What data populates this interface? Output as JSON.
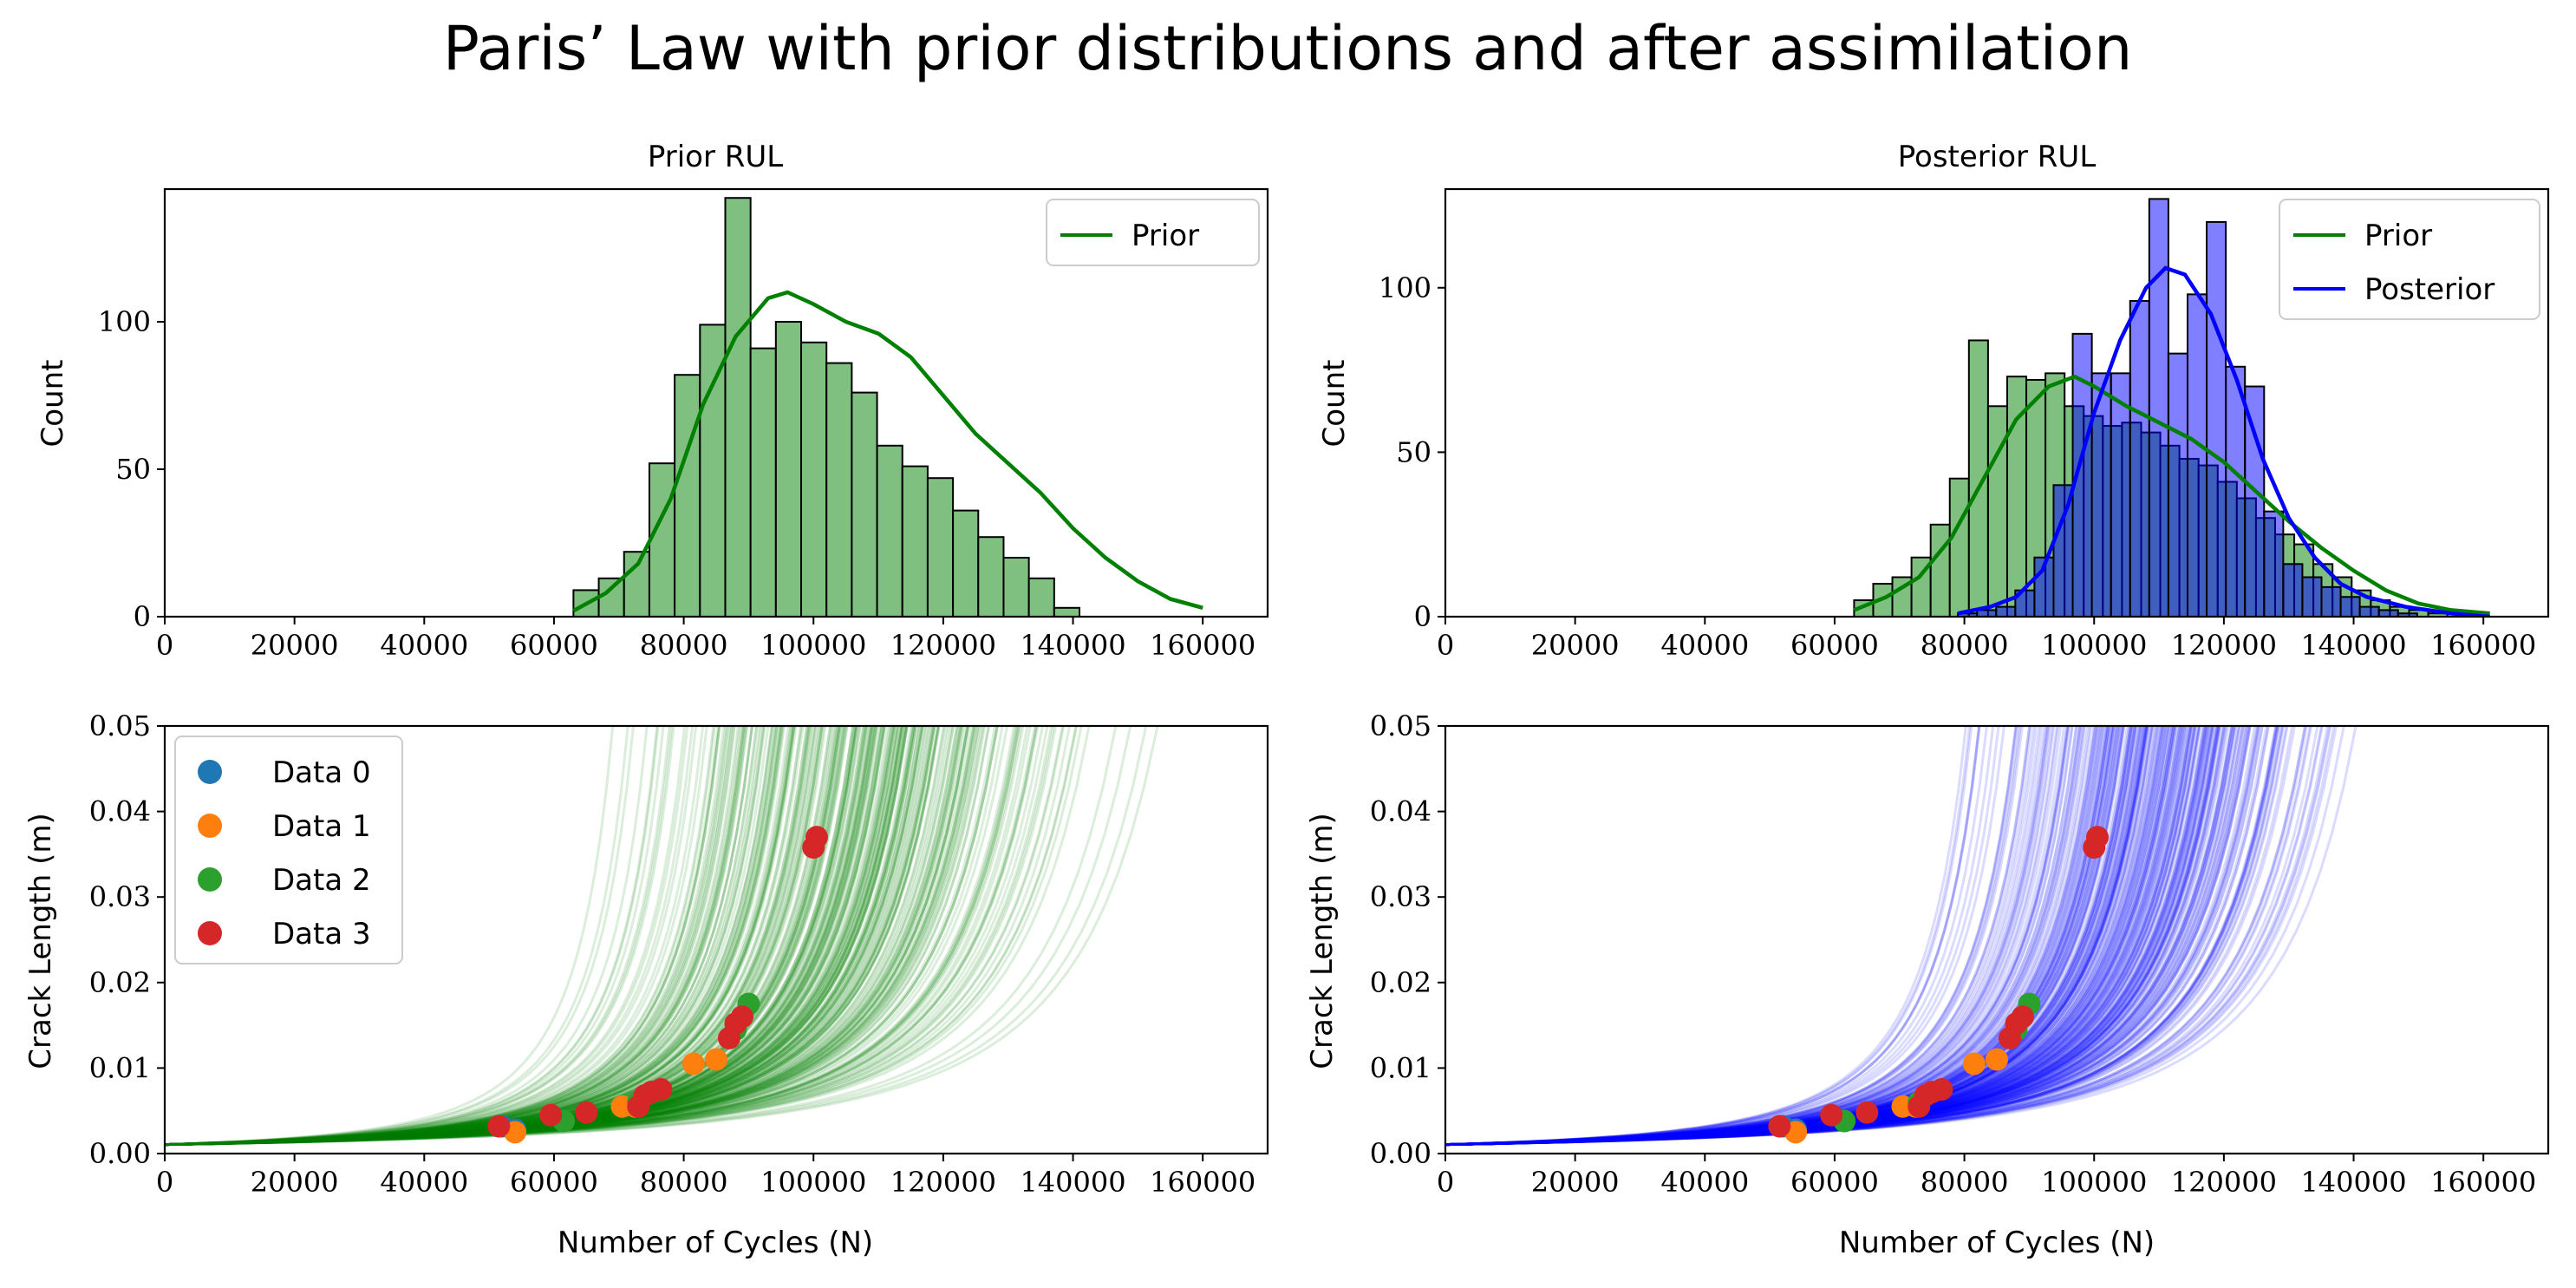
{
  "figure": {
    "title": "Paris’ Law with prior distributions and after assimilation"
  },
  "colors": {
    "prior": "#008000",
    "prior_fill": "#7fbf7f",
    "posterior": "#0000ff",
    "posterior_fill": "#7f7fff",
    "overlap_fill": "#3f5fbf",
    "data0": "#1f77b4",
    "data1": "#ff7f0e",
    "data2": "#2ca02c",
    "data3": "#d62728"
  },
  "chart_data": [
    {
      "id": "prior_rul",
      "type": "bar",
      "title": "Prior RUL",
      "xlabel": "",
      "ylabel": "Count",
      "xlim": [
        0,
        170000
      ],
      "ylim": [
        0,
        145
      ],
      "xticks": [
        "0",
        "20000",
        "40000",
        "60000",
        "80000",
        "100000",
        "120000",
        "140000",
        "160000"
      ],
      "yticks": [
        "0",
        "50",
        "100"
      ],
      "legend": {
        "placement": "top-right",
        "entries": [
          "Prior"
        ]
      },
      "hist": {
        "bin_start": 63000,
        "bin_width": 3900,
        "counts": [
          9,
          13,
          22,
          52,
          82,
          99,
          142,
          91,
          100,
          93,
          86,
          76,
          58,
          51,
          47,
          36,
          27,
          20,
          13,
          3
        ]
      },
      "kde": {
        "x": [
          63000,
          68000,
          73000,
          78000,
          83000,
          88000,
          93000,
          96000,
          100000,
          105000,
          110000,
          115000,
          120000,
          125000,
          130000,
          135000,
          140000,
          145000,
          150000,
          155000,
          160000
        ],
        "y": [
          2,
          8,
          18,
          40,
          72,
          95,
          108,
          110,
          106,
          100,
          96,
          88,
          75,
          62,
          52,
          42,
          30,
          20,
          12,
          6,
          3
        ]
      }
    },
    {
      "id": "posterior_rul",
      "type": "bar",
      "title": "Posterior RUL",
      "xlabel": "",
      "ylabel": "Count",
      "xlim": [
        0,
        170000
      ],
      "ylim": [
        0,
        130
      ],
      "xticks": [
        "0",
        "20000",
        "40000",
        "60000",
        "80000",
        "100000",
        "120000",
        "140000",
        "160000"
      ],
      "yticks": [
        "0",
        "50",
        "100"
      ],
      "legend": {
        "placement": "top-right",
        "entries": [
          "Prior",
          "Posterior"
        ]
      },
      "series": [
        {
          "name": "Prior",
          "bin_start": 63000,
          "bin_width": 2950,
          "counts": [
            5,
            10,
            12,
            18,
            28,
            42,
            84,
            64,
            73,
            72,
            74,
            64,
            61,
            58,
            59,
            56,
            52,
            48,
            46,
            41,
            36,
            30,
            25,
            22,
            16,
            12,
            8,
            5,
            3,
            2,
            1,
            1,
            1
          ]
        },
        {
          "name": "Posterior",
          "bin_start": 79000,
          "bin_width": 2950,
          "counts": [
            1,
            2,
            3,
            8,
            18,
            40,
            86,
            74,
            74,
            96,
            127,
            80,
            98,
            120,
            76,
            70,
            32,
            16,
            12,
            9,
            6,
            3,
            2,
            1
          ]
        }
      ],
      "kde": [
        {
          "name": "Prior",
          "x": [
            63000,
            68000,
            73000,
            78000,
            83000,
            88000,
            93000,
            97000,
            100000,
            105000,
            110000,
            115000,
            120000,
            125000,
            130000,
            135000,
            140000,
            145000,
            150000,
            155000,
            161000
          ],
          "y": [
            2,
            6,
            12,
            24,
            42,
            60,
            70,
            73,
            70,
            64,
            59,
            54,
            47,
            38,
            29,
            21,
            14,
            8,
            4,
            2,
            1
          ]
        },
        {
          "name": "Posterior",
          "x": [
            79000,
            84000,
            88000,
            92000,
            96000,
            100000,
            104000,
            108000,
            111000,
            114000,
            118000,
            122000,
            126000,
            130000,
            134000,
            138000,
            142000,
            148000,
            155000,
            161000
          ],
          "y": [
            1,
            3,
            6,
            14,
            34,
            62,
            84,
            100,
            106,
            104,
            92,
            72,
            48,
            30,
            18,
            10,
            6,
            3,
            1,
            0
          ]
        }
      ]
    },
    {
      "id": "prior_crack",
      "type": "line",
      "title": "",
      "xlabel": "Number of Cycles (N)",
      "ylabel": "Crack Length (m)",
      "xlim": [
        0,
        170000
      ],
      "ylim": [
        0,
        0.05
      ],
      "xticks": [
        "0",
        "20000",
        "40000",
        "60000",
        "80000",
        "100000",
        "120000",
        "140000",
        "160000"
      ],
      "yticks": [
        "0.00",
        "0.01",
        "0.02",
        "0.03",
        "0.04",
        "0.05"
      ],
      "legend": {
        "placement": "top-left",
        "entries": [
          "Data 0",
          "Data 1",
          "Data 2",
          "Data 3"
        ]
      },
      "curve_family": {
        "model": "a = a0 / (1 - N/Nf)^2",
        "a0": 0.00105,
        "nf_min": 70000,
        "nf_max": 185000,
        "count": 300
      },
      "scatter": [
        {
          "name": "Data 0",
          "x": [
            52000,
            54000
          ],
          "y": [
            0.0032,
            0.0028
          ]
        },
        {
          "name": "Data 1",
          "x": [
            54000,
            70500,
            72500,
            81500,
            85000
          ],
          "y": [
            0.0025,
            0.0055,
            0.0055,
            0.0105,
            0.011
          ]
        },
        {
          "name": "Data 2",
          "x": [
            61500,
            73000,
            88000,
            90000,
            89000
          ],
          "y": [
            0.0038,
            0.006,
            0.0145,
            0.0175,
            0.016
          ]
        },
        {
          "name": "Data 3",
          "x": [
            51500,
            59500,
            65000,
            73000,
            74000,
            75000,
            76500,
            87000,
            88000,
            89000,
            100000,
            100500
          ],
          "y": [
            0.0032,
            0.0045,
            0.0048,
            0.0055,
            0.0068,
            0.0072,
            0.0075,
            0.0135,
            0.0152,
            0.016,
            0.0358,
            0.037
          ]
        }
      ]
    },
    {
      "id": "posterior_crack",
      "type": "line",
      "title": "",
      "xlabel": "Number of Cycles (N)",
      "ylabel": "Crack Length (m)",
      "xlim": [
        0,
        170000
      ],
      "ylim": [
        0,
        0.05
      ],
      "xticks": [
        "0",
        "20000",
        "40000",
        "60000",
        "80000",
        "100000",
        "120000",
        "140000",
        "160000"
      ],
      "yticks": [
        "0.00",
        "0.01",
        "0.02",
        "0.03",
        "0.04",
        "0.05"
      ],
      "curve_family": {
        "model": "a = a0 / (1 - N/Nf)^2",
        "a0": 0.00105,
        "nf_min": 85000,
        "nf_max": 172000,
        "count": 300
      },
      "scatter": [
        {
          "name": "Data 0",
          "x": [
            52000,
            54000
          ],
          "y": [
            0.0032,
            0.0028
          ]
        },
        {
          "name": "Data 1",
          "x": [
            54000,
            70500,
            72500,
            81500,
            85000
          ],
          "y": [
            0.0025,
            0.0055,
            0.0055,
            0.0105,
            0.011
          ]
        },
        {
          "name": "Data 2",
          "x": [
            61500,
            73000,
            88000,
            90000,
            89000
          ],
          "y": [
            0.0038,
            0.006,
            0.0145,
            0.0175,
            0.016
          ]
        },
        {
          "name": "Data 3",
          "x": [
            51500,
            59500,
            65000,
            73000,
            74000,
            75000,
            76500,
            87000,
            88000,
            89000,
            100000,
            100500
          ],
          "y": [
            0.0032,
            0.0045,
            0.0048,
            0.0055,
            0.0068,
            0.0072,
            0.0075,
            0.0135,
            0.0152,
            0.016,
            0.0358,
            0.037
          ]
        }
      ]
    }
  ]
}
